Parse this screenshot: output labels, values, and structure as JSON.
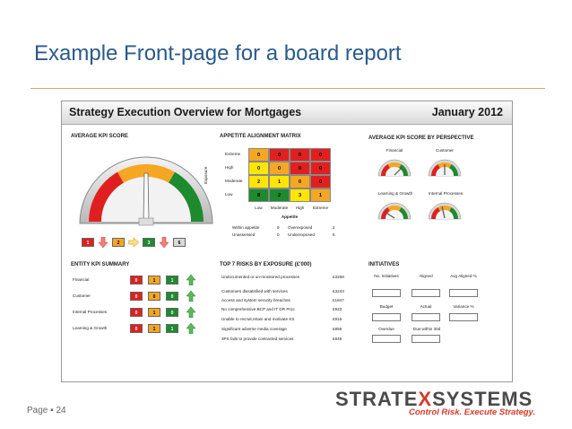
{
  "slide": {
    "title": "Example Front-page for a board report",
    "page_label": "Page",
    "page_bullet": "▪",
    "page_number": "24"
  },
  "logo": {
    "part1": "STRATE",
    "part2": "X",
    "part3": "SYSTEMS",
    "tagline": "Control Risk. Execute Strategy."
  },
  "board": {
    "title": "Strategy Execution Overview for Mortgages",
    "date": "January 2012",
    "avg_kpi": {
      "heading": "AVERAGE KPI SCORE",
      "summary": [
        {
          "value": "1",
          "color": "red"
        },
        {
          "value": "2",
          "color": "amber"
        },
        {
          "value": "3",
          "color": "green"
        },
        {
          "value": "6",
          "color": "grey"
        }
      ]
    },
    "matrix": {
      "heading": "APPETITE ALIGNMENT MATRIX",
      "row_labels": [
        "Extreme",
        "High",
        "Moderate",
        "Low"
      ],
      "col_labels": [
        "Low",
        "Moderate",
        "High",
        "Extreme"
      ],
      "y_axis_label": "Exposure",
      "x_axis_label": "Appetite",
      "cells": [
        [
          {
            "v": "0",
            "c": "amber"
          },
          {
            "v": "0",
            "c": "red"
          },
          {
            "v": "0",
            "c": "red"
          },
          {
            "v": "0",
            "c": "red"
          }
        ],
        [
          {
            "v": "0",
            "c": "yellow"
          },
          {
            "v": "0",
            "c": "amber"
          },
          {
            "v": "0",
            "c": "red"
          },
          {
            "v": "0",
            "c": "red"
          }
        ],
        [
          {
            "v": "2",
            "c": "yellow"
          },
          {
            "v": "1",
            "c": "yellow"
          },
          {
            "v": "0",
            "c": "amber"
          },
          {
            "v": "0",
            "c": "red"
          }
        ],
        [
          {
            "v": "8",
            "c": "green"
          },
          {
            "v": "2",
            "c": "green"
          },
          {
            "v": "3",
            "c": "yellow"
          },
          {
            "v": "1",
            "c": "amber"
          }
        ]
      ],
      "stats": [
        {
          "label": "Within appetite",
          "value": "9",
          "label2": "Overexposed",
          "value2": "2"
        },
        {
          "label": "Unassessed",
          "value": "0",
          "label2": "Underexposed",
          "value2": "6"
        }
      ]
    },
    "perspective": {
      "heading": "AVERAGE KPI SCORE BY PERSPECTIVE",
      "gauges": [
        "Financial",
        "Customer",
        "Learning & Growth",
        "Internal Processes"
      ]
    },
    "entity": {
      "heading": "ENTITY KPI SUMMARY",
      "rows": [
        {
          "name": "Financial",
          "r": "0",
          "a": "1",
          "g": "1"
        },
        {
          "name": "Customer",
          "r": "0",
          "a": "0",
          "g": "0"
        },
        {
          "name": "Internal Processes",
          "r": "0",
          "a": "1",
          "g": "0"
        },
        {
          "name": "Learning & Growth",
          "r": "0",
          "a": "1",
          "g": "1"
        }
      ]
    },
    "risks": {
      "heading": "TOP 7 RISKS BY EXPOSURE (£'000)",
      "items": [
        {
          "name": "Undocumented or un-monitored processes",
          "value": "£3268"
        },
        {
          "name": "Customers dissatisfied with services",
          "value": "£3243"
        },
        {
          "name": "Access and system security breaches",
          "value": "£1847"
        },
        {
          "name": "No comprehensive BCP and IT DR Proc",
          "value": "£923"
        },
        {
          "name": "Unable to recruit,retain and motivate KS",
          "value": "£916"
        },
        {
          "name": "Significant adverse media coverage",
          "value": "£859"
        },
        {
          "name": "3PS fails to provide contracted services",
          "value": "£849"
        }
      ]
    },
    "initiatives": {
      "heading": "INITIATIVES",
      "row1": [
        "No. Initiatives",
        "Aligned",
        "Avg Aligned %"
      ],
      "row2": [
        "Budget",
        "Actual",
        "Variance %"
      ],
      "row3": [
        "Overdue",
        "Due within 30d"
      ]
    }
  }
}
